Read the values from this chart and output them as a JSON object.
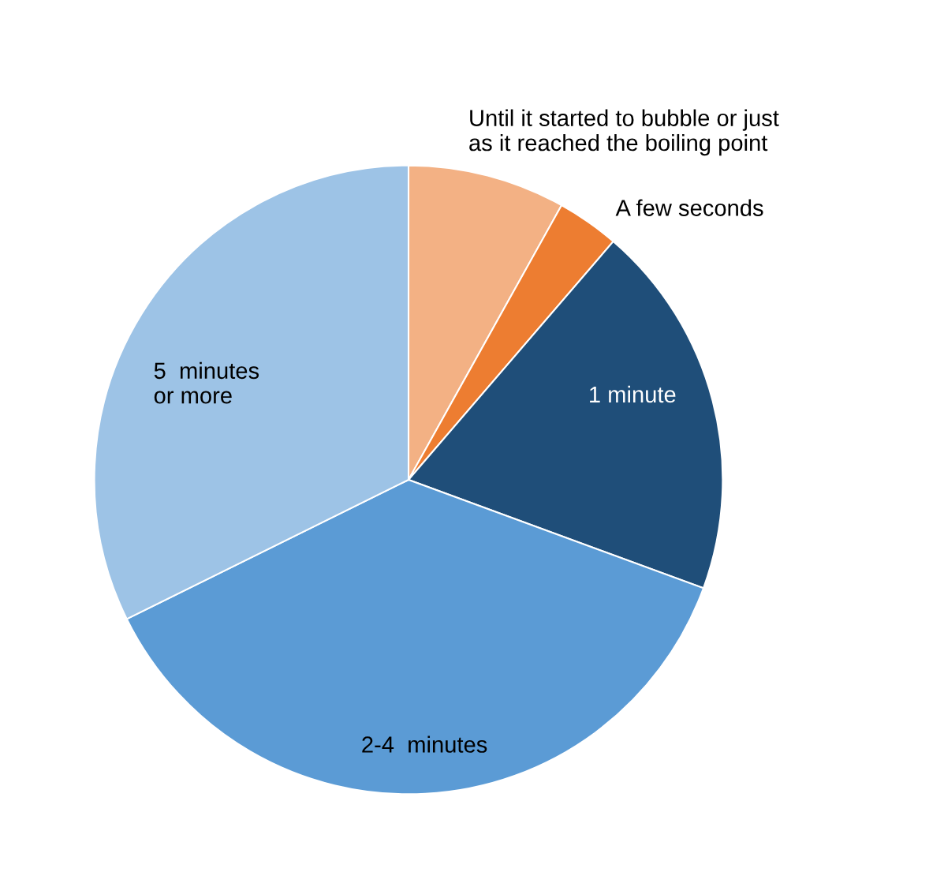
{
  "chart_data": {
    "type": "pie",
    "categories": [
      "Until it started to bubble or just\nas it reached the boiling point",
      "A few seconds",
      "1 minute",
      "2-4  minutes",
      "5  minutes\nor more"
    ],
    "values": [
      8.1,
      3.2,
      19.3,
      37.1,
      32.3
    ],
    "colors": [
      "#f3b184",
      "#ed7d31",
      "#1f4e79",
      "#5b9bd5",
      "#9dc3e6"
    ]
  }
}
